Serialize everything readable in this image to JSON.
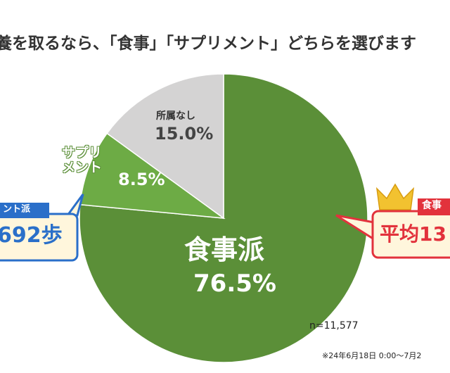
{
  "title": "養を取るなら、「食事」「サプリメント」どちらを選びます",
  "chart_data": {
    "type": "pie",
    "categories": [
      "食事派",
      "サプリメント",
      "所属なし"
    ],
    "values": [
      76.5,
      8.5,
      15.0
    ],
    "value_labels": [
      "76.5%",
      "8.5%",
      "15.0%"
    ],
    "colors": [
      "#5b8f38",
      "#6dab45",
      "#d4d3d3"
    ]
  },
  "callouts": {
    "left": {
      "badge": "ント派",
      "value": "692歩"
    },
    "right": {
      "badge": "食事",
      "value": "平均13"
    }
  },
  "note": "n=11,577",
  "footnote": "※24年6月18日 0:00〜7月2"
}
